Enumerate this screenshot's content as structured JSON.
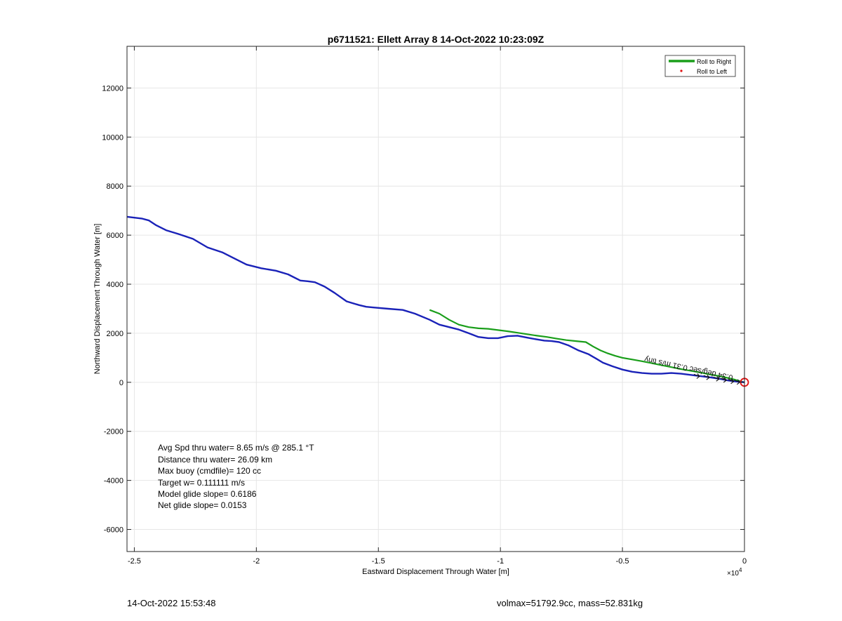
{
  "chart_data": {
    "type": "line",
    "title": "p6711521: Ellett Array 8 14-Oct-2022 10:23:09Z",
    "xlabel": "Eastward Displacement Through Water [m]",
    "ylabel": "Northward Displacement Through Water [m]",
    "x_exponent_label": "×10",
    "x_exponent_power": "4",
    "xlim": [
      -25300,
      0
    ],
    "ylim": [
      -6900,
      13700
    ],
    "xticks": [
      -25000,
      -20000,
      -15000,
      -10000,
      -5000,
      0
    ],
    "xtick_labels": [
      "-2.5",
      "-2",
      "-1.5",
      "-1",
      "-0.5",
      "0"
    ],
    "yticks": [
      -6000,
      -4000,
      -2000,
      0,
      2000,
      4000,
      6000,
      8000,
      10000,
      12000
    ],
    "ytick_labels": [
      "-6000",
      "-4000",
      "-2000",
      "0",
      "2000",
      "4000",
      "6000",
      "8000",
      "10000",
      "12000"
    ],
    "grid": true,
    "legend_position": "top-right",
    "legend": [
      {
        "label": "Roll to Right",
        "color": "#1a9e1a",
        "marker": "line"
      },
      {
        "label": "Roll to Left",
        "color": "#e01010",
        "marker": "dot"
      }
    ],
    "series": [
      {
        "color": "#1a22b8",
        "x": [
          -25300,
          -24700,
          -24400,
          -24100,
          -23700,
          -23200,
          -22600,
          -22000,
          -21400,
          -20900,
          -20400,
          -19800,
          -19200,
          -18700,
          -18200,
          -17900,
          -17600,
          -17200,
          -16800,
          -16300,
          -15800,
          -15500,
          -15200,
          -14600,
          -14000,
          -13500,
          -12900,
          -12500,
          -12100,
          -11700,
          -11300,
          -10900,
          -10500,
          -10100,
          -9700,
          -9300,
          -8900,
          -8500,
          -8200,
          -7900,
          -7600,
          -7200,
          -6800,
          -6400,
          -6100,
          -5800,
          -5400,
          -5000,
          -4600,
          -4200,
          -3800,
          -3400,
          -3000,
          -2600,
          -2200,
          -1800,
          -1400,
          -1000,
          -700,
          -400,
          -200,
          0
        ],
        "y": [
          6750,
          6680,
          6600,
          6400,
          6200,
          6050,
          5850,
          5500,
          5300,
          5050,
          4800,
          4650,
          4550,
          4400,
          4150,
          4120,
          4080,
          3900,
          3650,
          3300,
          3150,
          3080,
          3050,
          3000,
          2950,
          2800,
          2550,
          2350,
          2250,
          2150,
          2000,
          1850,
          1800,
          1800,
          1880,
          1900,
          1820,
          1750,
          1700,
          1680,
          1640,
          1500,
          1300,
          1150,
          980,
          800,
          650,
          520,
          430,
          380,
          350,
          350,
          380,
          350,
          300,
          250,
          200,
          140,
          80,
          40,
          15,
          0
        ]
      },
      {
        "color": "#1a9e1a",
        "x": [
          -12900,
          -12500,
          -12100,
          -11700,
          -11300,
          -10900,
          -10500,
          -10100,
          -9700,
          -9300,
          -8900,
          -8500,
          -8100,
          -7700,
          -7300,
          -6900,
          -6500,
          -6200,
          -5900,
          -5600,
          -5300,
          -5000,
          -4600,
          -4200,
          -3800,
          -3400,
          -3000,
          -2600,
          -2200,
          -1800,
          -1400,
          -1000,
          -700,
          -400,
          -200,
          0
        ],
        "y": [
          2950,
          2800,
          2550,
          2350,
          2250,
          2200,
          2180,
          2130,
          2080,
          2020,
          1960,
          1900,
          1850,
          1780,
          1720,
          1680,
          1640,
          1460,
          1300,
          1180,
          1080,
          1000,
          930,
          860,
          780,
          700,
          620,
          540,
          470,
          400,
          320,
          250,
          180,
          110,
          50,
          0
        ]
      }
    ],
    "end_marker": {
      "x": 0,
      "y": 0,
      "color": "#e01010"
    },
    "mirrored_annotation": "0.34 deg/sec  0.31 m/s  tiny",
    "stats": [
      "Avg Spd thru water=  8.65 m/s @ 285.1 °T",
      "Distance thru water= 26.09 km",
      "Max buoy (cmdfile)= 120 cc",
      "Target w= 0.111111 m/s",
      "Model glide slope= 0.6186",
      "Net glide slope= 0.0153"
    ]
  },
  "footer": {
    "timestamp": "14-Oct-2022 15:53:48",
    "mass_info": "volmax=51792.9cc, mass=52.831kg"
  }
}
